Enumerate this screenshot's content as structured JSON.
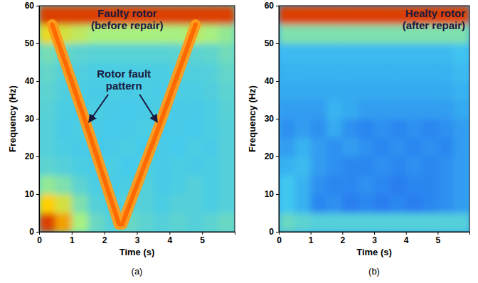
{
  "chart_data": [
    {
      "type": "heatmap",
      "label": "(a)",
      "xlabel": "Time (s)",
      "ylabel": "Frequency (Hz)",
      "xlim": [
        0,
        6
      ],
      "ylim": [
        0,
        60
      ],
      "xticks": [
        0,
        1,
        2,
        3,
        4,
        5
      ],
      "yticks": [
        0,
        10,
        20,
        30,
        40,
        50,
        60
      ],
      "time_bins": [
        0,
        0.5,
        1,
        1.5,
        2,
        2.5,
        3,
        3.5,
        4,
        4.5,
        5,
        5.5,
        6
      ],
      "freq_bins": [
        0,
        5,
        10,
        15,
        20,
        25,
        30,
        35,
        40,
        45,
        50,
        55,
        60
      ],
      "cells": [
        [
          0.95,
          0.85,
          0.6,
          0.45,
          0.4,
          0.45,
          0.42,
          0.4,
          0.42,
          0.4,
          0.42,
          0.45
        ],
        [
          0.8,
          0.7,
          0.5,
          0.4,
          0.38,
          0.4,
          0.4,
          0.38,
          0.4,
          0.4,
          0.38,
          0.4
        ],
        [
          0.55,
          0.5,
          0.42,
          0.38,
          0.37,
          0.38,
          0.4,
          0.37,
          0.38,
          0.4,
          0.38,
          0.4
        ],
        [
          0.42,
          0.4,
          0.38,
          0.37,
          0.38,
          0.36,
          0.38,
          0.37,
          0.38,
          0.37,
          0.38,
          0.4
        ],
        [
          0.4,
          0.38,
          0.37,
          0.36,
          0.37,
          0.38,
          0.36,
          0.37,
          0.36,
          0.38,
          0.37,
          0.4
        ],
        [
          0.4,
          0.37,
          0.38,
          0.37,
          0.36,
          0.37,
          0.38,
          0.36,
          0.37,
          0.36,
          0.38,
          0.4
        ],
        [
          0.41,
          0.38,
          0.37,
          0.38,
          0.37,
          0.36,
          0.37,
          0.38,
          0.37,
          0.37,
          0.38,
          0.41
        ],
        [
          0.42,
          0.39,
          0.38,
          0.37,
          0.38,
          0.37,
          0.38,
          0.37,
          0.38,
          0.38,
          0.39,
          0.42
        ],
        [
          0.44,
          0.4,
          0.39,
          0.38,
          0.38,
          0.38,
          0.38,
          0.38,
          0.39,
          0.39,
          0.4,
          0.44
        ],
        [
          0.48,
          0.44,
          0.42,
          0.41,
          0.41,
          0.41,
          0.41,
          0.41,
          0.42,
          0.42,
          0.43,
          0.47
        ],
        [
          0.75,
          0.7,
          0.65,
          0.6,
          0.6,
          0.6,
          0.6,
          0.6,
          0.6,
          0.65,
          0.6,
          0.55
        ],
        [
          0.95,
          0.95,
          0.95,
          0.95,
          0.95,
          0.95,
          0.95,
          0.95,
          0.95,
          0.95,
          0.95,
          0.95
        ]
      ],
      "series": [
        {
          "type": "line",
          "color": "#ff9a1a",
          "x": [
            0.4,
            1.45,
            2.45,
            2.55,
            3.7,
            4.8
          ],
          "values": [
            55,
            28.5,
            2,
            2,
            28.5,
            55
          ]
        }
      ],
      "annotations": [
        {
          "text": [
            "Faulty rotor",
            "(before repair)"
          ]
        },
        {
          "text": [
            "Rotor fault",
            "pattern"
          ]
        }
      ]
    },
    {
      "type": "heatmap",
      "label": "(b)",
      "xlabel": "Time (s)",
      "ylabel": "Frequency (Hz)",
      "xlim": [
        0,
        6
      ],
      "ylim": [
        0,
        60
      ],
      "xticks": [
        0,
        1,
        2,
        3,
        4,
        5
      ],
      "yticks": [
        0,
        10,
        20,
        30,
        40,
        50,
        60
      ],
      "time_bins": [
        0,
        0.5,
        1,
        1.5,
        2,
        2.5,
        3,
        3.5,
        4,
        4.5,
        5,
        5.5,
        6
      ],
      "freq_bins": [
        0,
        5,
        10,
        15,
        20,
        25,
        30,
        35,
        40,
        45,
        50,
        55,
        60
      ],
      "cells": [
        [
          0.45,
          0.42,
          0.4,
          0.4,
          0.4,
          0.4,
          0.4,
          0.4,
          0.4,
          0.4,
          0.4,
          0.4
        ],
        [
          0.35,
          0.3,
          0.2,
          0.22,
          0.18,
          0.2,
          0.18,
          0.2,
          0.18,
          0.2,
          0.22,
          0.25
        ],
        [
          0.35,
          0.3,
          0.22,
          0.2,
          0.2,
          0.22,
          0.2,
          0.18,
          0.2,
          0.2,
          0.22,
          0.25
        ],
        [
          0.3,
          0.32,
          0.25,
          0.22,
          0.2,
          0.2,
          0.22,
          0.2,
          0.22,
          0.2,
          0.22,
          0.25
        ],
        [
          0.25,
          0.3,
          0.25,
          0.22,
          0.25,
          0.22,
          0.2,
          0.22,
          0.2,
          0.22,
          0.2,
          0.25
        ],
        [
          0.22,
          0.25,
          0.22,
          0.28,
          0.22,
          0.2,
          0.22,
          0.2,
          0.22,
          0.2,
          0.22,
          0.25
        ],
        [
          0.25,
          0.25,
          0.25,
          0.3,
          0.28,
          0.25,
          0.25,
          0.25,
          0.25,
          0.25,
          0.25,
          0.28
        ],
        [
          0.28,
          0.28,
          0.28,
          0.28,
          0.28,
          0.28,
          0.28,
          0.28,
          0.28,
          0.28,
          0.28,
          0.3
        ],
        [
          0.3,
          0.3,
          0.3,
          0.3,
          0.3,
          0.3,
          0.3,
          0.3,
          0.3,
          0.3,
          0.3,
          0.32
        ],
        [
          0.32,
          0.32,
          0.32,
          0.32,
          0.32,
          0.32,
          0.32,
          0.32,
          0.32,
          0.32,
          0.32,
          0.34
        ],
        [
          0.5,
          0.5,
          0.5,
          0.5,
          0.5,
          0.5,
          0.5,
          0.5,
          0.5,
          0.5,
          0.5,
          0.5
        ],
        [
          0.95,
          0.95,
          0.95,
          0.95,
          0.95,
          0.95,
          0.95,
          0.95,
          0.95,
          0.95,
          0.95,
          0.95
        ]
      ],
      "annotations": [
        {
          "text": [
            "Healty rotor",
            "(after repair)"
          ]
        }
      ]
    }
  ]
}
